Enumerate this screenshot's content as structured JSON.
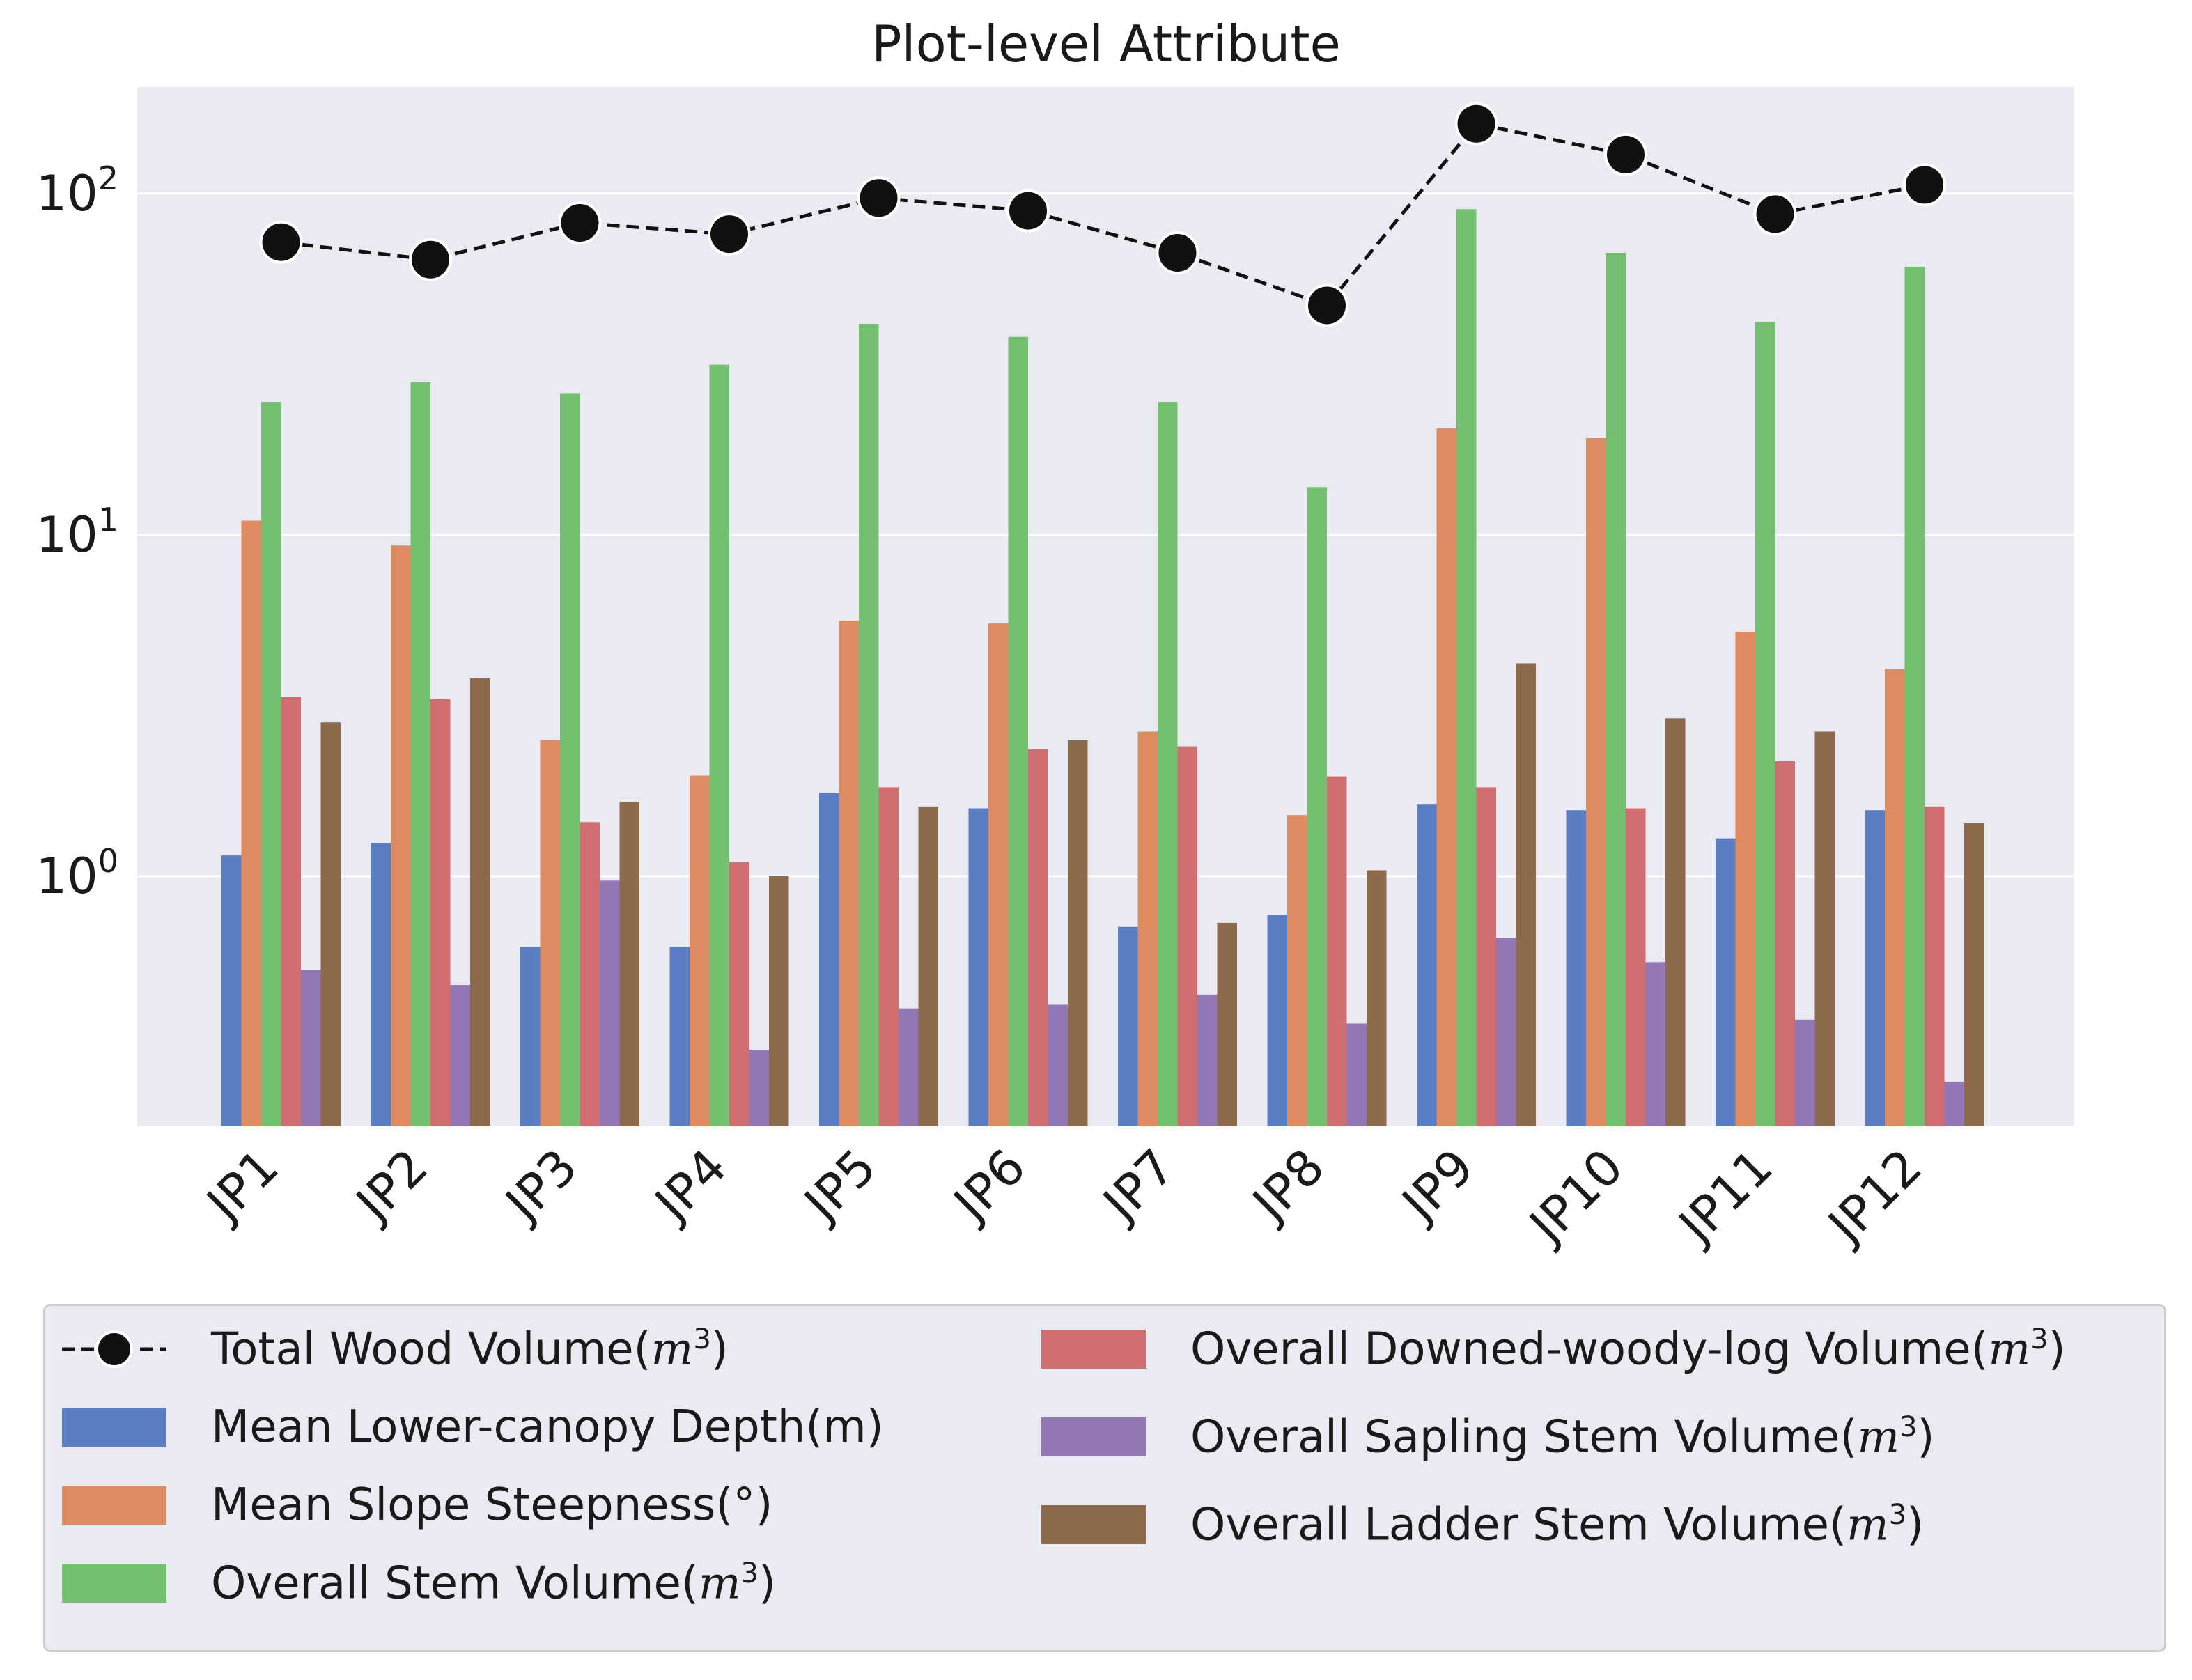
{
  "chart_data": {
    "type": "bar",
    "title": "Plot-level Attribute",
    "xlabel": "",
    "ylabel": "",
    "yscale": "log",
    "ylim": [
      0.185,
      205
    ],
    "yticks": [
      {
        "value": 1,
        "base": "10",
        "exp": "0"
      },
      {
        "value": 10,
        "base": "10",
        "exp": "1"
      },
      {
        "value": 100,
        "base": "10",
        "exp": "2"
      }
    ],
    "grid": true,
    "legend_position": "bottom",
    "categories": [
      "JP1",
      "JP2",
      "JP3",
      "JP4",
      "JP5",
      "JP6",
      "JP7",
      "JP8",
      "JP9",
      "JP10",
      "JP11",
      "JP12"
    ],
    "series": [
      {
        "name": "Mean Lower-canopy Depth(m)",
        "kind": "bar",
        "color": "#5a7dc3",
        "values": [
          1.15,
          1.25,
          0.62,
          0.62,
          1.75,
          1.58,
          0.71,
          0.77,
          1.62,
          1.56,
          1.29,
          1.56
        ]
      },
      {
        "name": "Mean Slope Steepness(°)",
        "kind": "bar",
        "color": "#df8b62",
        "values": [
          11.0,
          9.3,
          2.5,
          1.97,
          5.6,
          5.5,
          2.65,
          1.51,
          20.5,
          19.2,
          5.2,
          4.05
        ]
      },
      {
        "name": "Overall Stem Volume(m3)",
        "kind": "bar",
        "color": "#75bf70",
        "values": [
          24.5,
          28.0,
          26.0,
          31.5,
          41.5,
          38.0,
          24.5,
          13.8,
          90.0,
          67.0,
          42.0,
          61.0
        ]
      },
      {
        "name": "Overall Downed-woody-log Volume(m3)",
        "kind": "bar",
        "color": "#cf6d71",
        "values": [
          3.35,
          3.3,
          1.44,
          1.1,
          1.82,
          2.35,
          2.4,
          1.96,
          1.82,
          1.58,
          2.17,
          1.6
        ]
      },
      {
        "name": "Overall Sapling Stem Volume(m3)",
        "kind": "bar",
        "color": "#9177b3",
        "values": [
          0.53,
          0.48,
          0.97,
          0.31,
          0.41,
          0.42,
          0.45,
          0.37,
          0.66,
          0.56,
          0.38,
          0.25
        ]
      },
      {
        "name": "Overall Ladder Stem Volume(m3)",
        "kind": "bar",
        "color": "#8c6a4b",
        "values": [
          2.82,
          3.8,
          1.65,
          1.0,
          1.6,
          2.5,
          0.73,
          1.04,
          4.2,
          2.9,
          2.65,
          1.43
        ]
      },
      {
        "name": "Total Wood Volume(m3)",
        "kind": "line",
        "color": "#111111",
        "values": [
          72,
          64,
          82,
          76,
          97,
          89,
          67,
          47,
          160,
          130,
          87,
          106
        ]
      }
    ]
  },
  "legend": {
    "total": {
      "text": "Total Wood Volume(",
      "var": "m",
      "exp": "3",
      "close": ")"
    },
    "depth": {
      "text": "Mean Lower-canopy Depth(m)"
    },
    "slope": {
      "text": "Mean Slope Steepness(°)"
    },
    "stem": {
      "text": "Overall Stem Volume(",
      "var": "m",
      "exp": "3",
      "close": ")"
    },
    "log": {
      "text": "Overall Downed-woody-log Volume(",
      "var": "m",
      "exp": "3",
      "close": ")"
    },
    "sapling": {
      "text": "Overall Sapling Stem Volume(",
      "var": "m",
      "exp": "3",
      "close": ")"
    },
    "ladder": {
      "text": "Overall Ladder Stem Volume(",
      "var": "m",
      "exp": "3",
      "close": ")"
    }
  }
}
